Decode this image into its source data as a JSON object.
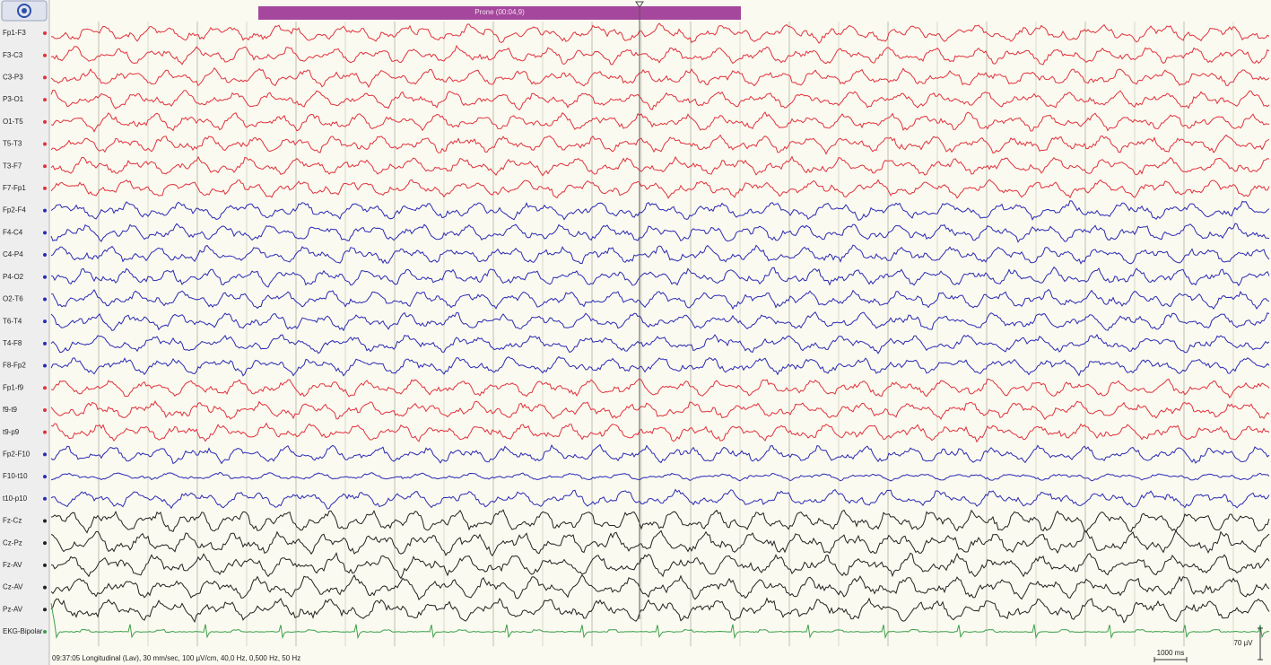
{
  "event": {
    "label": "Prone (00:04,9)"
  },
  "channels": [
    {
      "label": "Fp1-F3",
      "color": "#e0323c"
    },
    {
      "label": "F3-C3",
      "color": "#e0323c"
    },
    {
      "label": "C3-P3",
      "color": "#e0323c"
    },
    {
      "label": "P3-O1",
      "color": "#e0323c"
    },
    {
      "label": "O1-T5",
      "color": "#e0323c"
    },
    {
      "label": "T5-T3",
      "color": "#e0323c"
    },
    {
      "label": "T3-F7",
      "color": "#e0323c"
    },
    {
      "label": "F7-Fp1",
      "color": "#e0323c"
    },
    {
      "label": "Fp2-F4",
      "color": "#2a2ab4"
    },
    {
      "label": "F4-C4",
      "color": "#2a2ab4"
    },
    {
      "label": "C4-P4",
      "color": "#2a2ab4"
    },
    {
      "label": "P4-O2",
      "color": "#2a2ab4"
    },
    {
      "label": "O2-T6",
      "color": "#2a2ab4"
    },
    {
      "label": "T6-T4",
      "color": "#2a2ab4"
    },
    {
      "label": "T4-F8",
      "color": "#2a2ab4"
    },
    {
      "label": "F8-Fp2",
      "color": "#2a2ab4"
    },
    {
      "label": "Fp1-f9",
      "color": "#e0323c"
    },
    {
      "label": "f9-t9",
      "color": "#e0323c"
    },
    {
      "label": "t9-p9",
      "color": "#e0323c"
    },
    {
      "label": "Fp2-F10",
      "color": "#2a2ab4"
    },
    {
      "label": "F10-t10",
      "color": "#2a2ab4"
    },
    {
      "label": "t10-p10",
      "color": "#2a2ab4"
    },
    {
      "label": "Fz-Cz",
      "color": "#222222"
    },
    {
      "label": "Cz-Pz",
      "color": "#222222"
    },
    {
      "label": "Fz-AV",
      "color": "#222222"
    },
    {
      "label": "Cz-AV",
      "color": "#222222"
    },
    {
      "label": "Pz-AV",
      "color": "#222222"
    },
    {
      "label": "EKG-Bipolar",
      "color": "#3aa04a"
    }
  ],
  "footer": {
    "text": "09:37:05 Longitudinal (Lav), 30 mm/sec, 100 µV/cm, 40,0 Hz, 0,500 Hz, 50 Hz"
  },
  "scale": {
    "time": "1000 ms",
    "amplitude": "70 µV"
  }
}
